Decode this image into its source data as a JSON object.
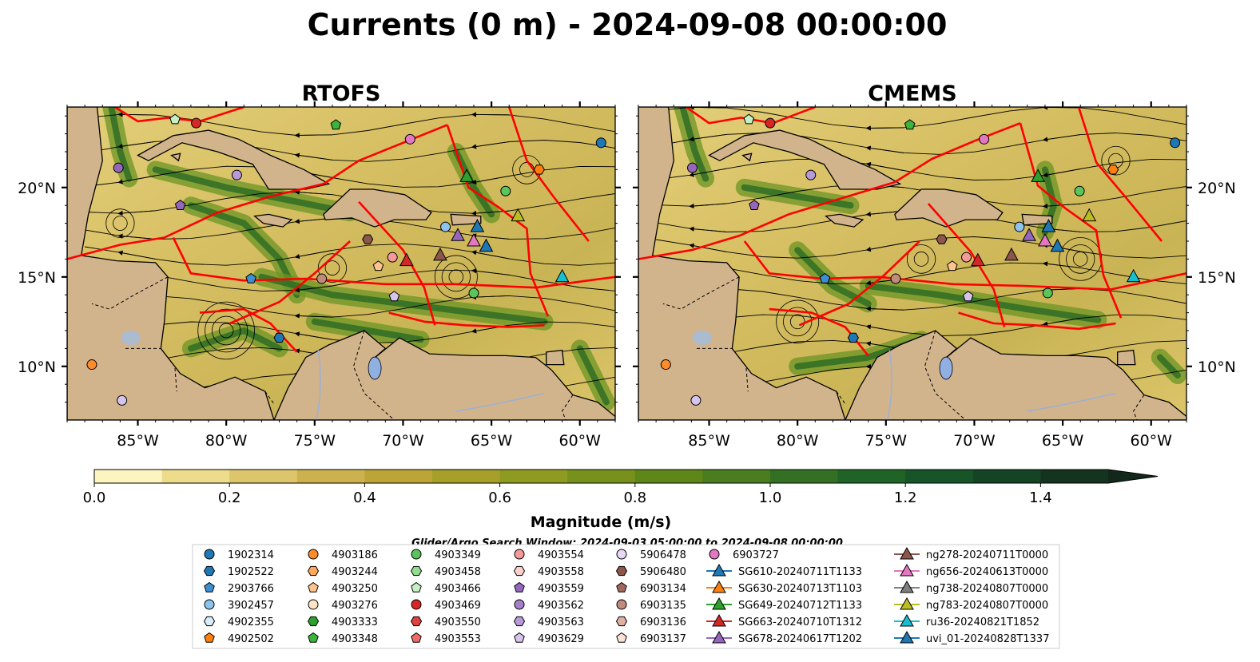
{
  "figure": {
    "title": "Currents (0 m) - 2024-09-08 00:00:00",
    "colors": {
      "land": "#d2b48c",
      "lake": "#8fb0e0",
      "eez": "#ff0000",
      "coast": "#000000"
    }
  },
  "chart_data": [
    {
      "type": "heatmap",
      "title": "RTOFS",
      "x_axis": {
        "range": [
          -89,
          -58
        ],
        "ticks": [
          -85,
          -80,
          -75,
          -70,
          -65,
          -60
        ],
        "tick_labels": [
          "85°W",
          "80°W",
          "75°W",
          "70°W",
          "65°W",
          "60°W"
        ]
      },
      "y_axis": {
        "range": [
          7,
          24.5
        ],
        "ticks": [
          10,
          15,
          20
        ],
        "tick_labels": [
          "10°N",
          "15°N",
          "20°N"
        ]
      },
      "variable": "current magnitude with streamlines"
    },
    {
      "type": "heatmap",
      "title": "CMEMS",
      "x_axis": {
        "range": [
          -89,
          -58
        ],
        "ticks": [
          -85,
          -80,
          -75,
          -70,
          -65,
          -60
        ],
        "tick_labels": [
          "85°W",
          "80°W",
          "75°W",
          "70°W",
          "65°W",
          "60°W"
        ]
      },
      "y_axis": {
        "range": [
          7,
          24.5
        ],
        "ticks": [
          10,
          15,
          20
        ],
        "tick_labels": [
          "10°N",
          "15°N",
          "20°N"
        ]
      },
      "variable": "current magnitude with streamlines"
    }
  ],
  "colorbar": {
    "label": "Magnitude (m/s)",
    "range": [
      0,
      1.5
    ],
    "extend": "max",
    "ticks": [
      0.0,
      0.2,
      0.4,
      0.6,
      0.8,
      1.0,
      1.2,
      1.4
    ],
    "tick_labels": [
      "0.0",
      "0.2",
      "0.4",
      "0.6",
      "0.8",
      "1.0",
      "1.2",
      "1.4"
    ],
    "colors": [
      "#fdf5c0",
      "#ecdc8c",
      "#dcc56a",
      "#cdb14e",
      "#bba537",
      "#a6a02b",
      "#8f9a21",
      "#78901c",
      "#5f8619",
      "#4a7d1f",
      "#347024",
      "#1f6327",
      "#175428",
      "#154425",
      "#14341f"
    ],
    "extend_color": "#12281a"
  },
  "search_window": "Glider/Argo Search Window: 2024-09-03 05:00:00 to 2024-09-08 00:00:00",
  "legend": {
    "columns": [
      [
        {
          "label": "1902314",
          "marker": "circle",
          "color": "#1f77b4"
        },
        {
          "label": "1902522",
          "marker": "hexagon",
          "color": "#1f77b4"
        },
        {
          "label": "2903766",
          "marker": "pentagon",
          "color": "#3d8fcf"
        },
        {
          "label": "3902457",
          "marker": "circle",
          "color": "#8ec3ec"
        },
        {
          "label": "4902355",
          "marker": "hexagon",
          "color": "#d9ecfa"
        },
        {
          "label": "4902502",
          "marker": "pentagon",
          "color": "#ff7f0e"
        }
      ],
      [
        {
          "label": "4903186",
          "marker": "circle",
          "color": "#ff8c2a"
        },
        {
          "label": "4903244",
          "marker": "hexagon",
          "color": "#ffa85a"
        },
        {
          "label": "4903250",
          "marker": "pentagon",
          "color": "#ffc48e"
        },
        {
          "label": "4903276",
          "marker": "circle",
          "color": "#ffe4c8"
        },
        {
          "label": "4903333",
          "marker": "hexagon",
          "color": "#2ca02c"
        },
        {
          "label": "4903348",
          "marker": "pentagon",
          "color": "#3cb43c"
        }
      ],
      [
        {
          "label": "4903349",
          "marker": "circle",
          "color": "#5cc45c"
        },
        {
          "label": "4903458",
          "marker": "hexagon",
          "color": "#90dc90"
        },
        {
          "label": "4903466",
          "marker": "pentagon",
          "color": "#c4f0c4"
        },
        {
          "label": "4903469",
          "marker": "circle",
          "color": "#d62728"
        },
        {
          "label": "4903550",
          "marker": "hexagon",
          "color": "#e0403f"
        },
        {
          "label": "4903553",
          "marker": "pentagon",
          "color": "#f06a68"
        }
      ],
      [
        {
          "label": "4903554",
          "marker": "circle",
          "color": "#f59a98"
        },
        {
          "label": "4903558",
          "marker": "hexagon",
          "color": "#fcd0cf"
        },
        {
          "label": "4903559",
          "marker": "pentagon",
          "color": "#9467bd"
        },
        {
          "label": "4903562",
          "marker": "circle",
          "color": "#a57fcc"
        },
        {
          "label": "4903563",
          "marker": "hexagon",
          "color": "#b99ad8"
        },
        {
          "label": "4903629",
          "marker": "pentagon",
          "color": "#d6c4ec"
        }
      ],
      [
        {
          "label": "5906478",
          "marker": "circle",
          "color": "#e6d8f6"
        },
        {
          "label": "5906480",
          "marker": "hexagon",
          "color": "#8c564b"
        },
        {
          "label": "6903134",
          "marker": "pentagon",
          "color": "#a0685c"
        },
        {
          "label": "6903135",
          "marker": "circle",
          "color": "#c08a7c"
        },
        {
          "label": "6903136",
          "marker": "hexagon",
          "color": "#e0b0a2"
        },
        {
          "label": "6903137",
          "marker": "pentagon",
          "color": "#fde0d6"
        }
      ],
      [
        {
          "label": "6903727",
          "marker": "circle",
          "color": "#e377c2"
        },
        {
          "label": "SG610-20240711T1133",
          "marker": "triangle",
          "color": "#1f77b4"
        },
        {
          "label": "SG630-20240713T1103",
          "marker": "triangle",
          "color": "#ff7f0e"
        },
        {
          "label": "SG649-20240712T1133",
          "marker": "triangle",
          "color": "#2ca02c"
        },
        {
          "label": "SG663-20240710T1312",
          "marker": "triangle",
          "color": "#d62728"
        },
        {
          "label": "SG678-20240617T1202",
          "marker": "triangle",
          "color": "#9467bd"
        }
      ],
      [
        {
          "label": "ng278-20240711T0000",
          "marker": "triangle",
          "color": "#8c564b"
        },
        {
          "label": "ng656-20240613T0000",
          "marker": "triangle",
          "color": "#e377c2"
        },
        {
          "label": "ng738-20240807T0000",
          "marker": "triangle",
          "color": "#7f7f7f"
        },
        {
          "label": "ng783-20240807T0000",
          "marker": "triangle",
          "color": "#bcbd22"
        },
        {
          "label": "ru36-20240821T1852",
          "marker": "triangle",
          "color": "#17becf"
        },
        {
          "label": "uvi_01-20240828T1337",
          "marker": "triangle",
          "color": "#1f77b4"
        }
      ]
    ]
  }
}
